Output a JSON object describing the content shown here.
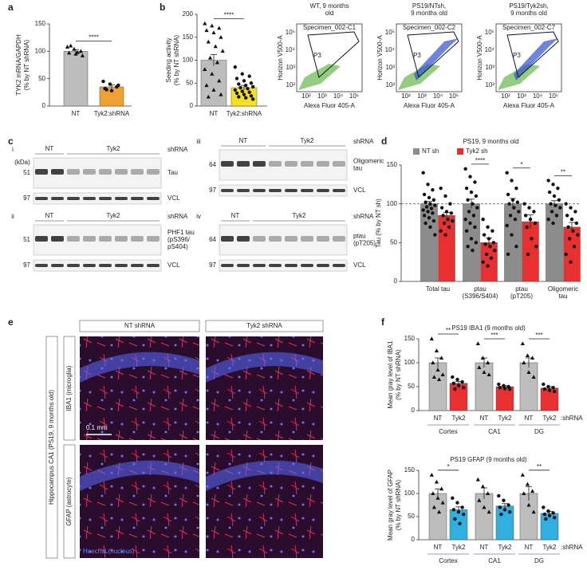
{
  "panels": [
    "a",
    "b",
    "c",
    "d",
    "e",
    "f"
  ],
  "chart_data": [
    {
      "type": "bar",
      "ylabel": [
        "TYK2 mRNA/GAPDH",
        "(% by NT shRNA)"
      ],
      "categories": [
        "NT",
        "Tyk2:shRNA"
      ],
      "ylim": [
        0,
        150
      ],
      "yticks": [
        0,
        50,
        100,
        150
      ],
      "series": [
        {
          "colors": [
            "#bdbdbd",
            "#f0a030"
          ],
          "markers": [
            "triangle",
            "circle"
          ],
          "values": [
            100,
            35
          ],
          "errors": [
            3,
            4
          ],
          "points": [
            [
              108,
              104,
              100,
              97,
              95,
              92,
              110,
              98
            ],
            [
              45,
              40,
              35,
              32,
              28,
              38,
              30
            ]
          ]
        }
      ],
      "significance": "****"
    },
    {
      "type": "bar",
      "ylabel": [
        "Seeding activity",
        "(% by NT shRNA)"
      ],
      "categories": [
        "NT",
        "Tyk2:shRNA"
      ],
      "ylim": [
        0,
        200
      ],
      "yticks": [
        0,
        50,
        100,
        150,
        200
      ],
      "series": [
        {
          "colors": [
            "#bdbdbd",
            "#f5e020"
          ],
          "markers": [
            "triangle",
            "circle"
          ],
          "values": [
            100,
            40
          ],
          "errors": [
            12,
            5
          ],
          "points": [
            [
              180,
              175,
              170,
              165,
              160,
              150,
              140,
              130,
              120,
              105,
              95,
              80,
              70,
              55,
              45,
              35,
              25,
              20
            ],
            [
              85,
              70,
              65,
              60,
              55,
              50,
              48,
              45,
              42,
              40,
              38,
              35,
              32,
              30,
              28,
              25,
              22,
              20,
              18,
              15
            ]
          ]
        }
      ],
      "significance": "****"
    },
    {
      "type": "bar",
      "title": "PS19, 9 months old",
      "ylabel": [
        "Tau (% by NT sh)"
      ],
      "categories": [
        [
          "Total tau"
        ],
        [
          "ptau",
          "(S396/S404)"
        ],
        [
          "ptau",
          "(pT205)"
        ],
        [
          "Oligomeric",
          "tau"
        ]
      ],
      "ylim": [
        0,
        150
      ],
      "yticks": [
        0,
        50,
        100,
        150
      ],
      "hline": 100,
      "legend": "top",
      "series": [
        {
          "name": "NT sh",
          "color": "#8c8c8c",
          "marker": "circle",
          "values": [
            100,
            100,
            100,
            100
          ],
          "errors": [
            3,
            6,
            7,
            4
          ],
          "points": [
            [
              140,
              125,
              118,
              112,
              108,
              105,
              102,
              100,
              98,
              96,
              94,
              92,
              90,
              88,
              85,
              82,
              78,
              75,
              70,
              60
            ],
            [
              145,
              135,
              128,
              120,
              115,
              110,
              105,
              100,
              95,
              90,
              85,
              80,
              75,
              70,
              65,
              55,
              50,
              45,
              40
            ],
            [
              140,
              130,
              120,
              112,
              105,
              102,
              100,
              95,
              90,
              85,
              80,
              72,
              60,
              45,
              35
            ],
            [
              130,
              125,
              120,
              115,
              110,
              105,
              100,
              98,
              95,
              90,
              85,
              80,
              75
            ]
          ]
        },
        {
          "name": "Tyk2 sh",
          "color": "#e83030",
          "marker": "circle",
          "values": [
            85,
            50,
            77,
            70
          ],
          "errors": [
            4,
            6,
            9,
            6
          ],
          "points": [
            [
              120,
              110,
              100,
              95,
              90,
              88,
              85,
              80,
              78,
              75,
              70,
              65,
              60
            ],
            [
              80,
              70,
              65,
              60,
              55,
              50,
              48,
              45,
              40,
              35,
              30,
              25,
              20
            ],
            [
              100,
              95,
              90,
              85,
              80,
              75,
              70,
              55,
              45,
              35
            ],
            [
              100,
              95,
              90,
              85,
              80,
              75,
              70,
              65,
              60,
              55,
              45,
              35,
              25
            ]
          ]
        }
      ],
      "significance": [
        null,
        "****",
        "*",
        "**"
      ]
    },
    {
      "type": "bar",
      "title": "PS19 IBA1 (9 months old)",
      "ylabel": [
        "Mean gray level of IBA1",
        "(% by NT shRNA)"
      ],
      "categories": [
        "Cortex",
        "CA1",
        "DG"
      ],
      "bar_labels": [
        "NT",
        "Tyk2"
      ],
      "suffix_label": ":shRNA",
      "ylim": [
        0,
        150
      ],
      "yticks": [
        0,
        50,
        100,
        150
      ],
      "series": [
        {
          "color": "#bdbdbd",
          "marker": "triangle",
          "values": [
            100,
            100,
            100
          ],
          "errors": [
            10,
            10,
            10
          ],
          "points": [
            [
              150,
              125,
              110,
              100,
              85,
              75,
              70,
              65
            ],
            [
              140,
              110,
              100,
              90,
              80,
              75
            ],
            [
              140,
              115,
              110,
              100,
              80,
              70
            ]
          ]
        },
        {
          "color": "#e83030",
          "marker": "circle",
          "values": [
            57,
            50,
            47
          ],
          "errors": [
            4,
            2,
            3
          ],
          "points": [
            [
              70,
              65,
              60,
              57,
              52,
              48,
              45
            ],
            [
              55,
              52,
              50,
              48,
              46,
              45
            ],
            [
              55,
              50,
              48,
              45,
              42,
              40
            ]
          ]
        }
      ],
      "significance": [
        "**",
        "***",
        "***"
      ]
    },
    {
      "type": "bar",
      "title": "PS19 GFAP (9 months old)",
      "ylabel": [
        "Mean gray level of GFAP",
        "(% by NT shRNA)"
      ],
      "categories": [
        "Cortex",
        "CA1",
        "DG"
      ],
      "bar_labels": [
        "NT",
        "Tyk2"
      ],
      "suffix_label": ":shRNA",
      "ylim": [
        0,
        150
      ],
      "yticks": [
        0,
        50,
        100,
        150
      ],
      "series": [
        {
          "color": "#bdbdbd",
          "marker": "triangle",
          "values": [
            100,
            100,
            100
          ],
          "errors": [
            10,
            12,
            15
          ],
          "points": [
            [
              140,
              125,
              110,
              100,
              90,
              80,
              70,
              60
            ],
            [
              130,
              115,
              100,
              85,
              70,
              60
            ],
            [
              140,
              120,
              105,
              100,
              75,
              60
            ]
          ]
        },
        {
          "color": "#30b0e0",
          "marker": "circle",
          "values": [
            65,
            73,
            57
          ],
          "errors": [
            6,
            5,
            4
          ],
          "points": [
            [
              90,
              80,
              70,
              65,
              60,
              55,
              45,
              35
            ],
            [
              95,
              85,
              75,
              70,
              65,
              60,
              55
            ],
            [
              70,
              62,
              58,
              55,
              52,
              48,
              45
            ]
          ]
        }
      ],
      "significance": [
        "*",
        null,
        "**"
      ]
    }
  ],
  "flow": {
    "plots": [
      {
        "title": [
          "WT, 9 months",
          "old"
        ],
        "specimen": "Specimen_002-C1"
      },
      {
        "title": [
          "PS19/NTsh,",
          "9 months old"
        ],
        "specimen": "Specimen_002-C2"
      },
      {
        "title": [
          "PS19/Tyk2sh,",
          "9 months old"
        ],
        "specimen": "Specimen_002-C7"
      }
    ],
    "gate": "P3",
    "ylabel": "Horizon V500-A",
    "xlabel": "Alexa Fluor 405-A",
    "xticks": [
      "10²",
      "10³",
      "10⁴",
      "10⁵"
    ],
    "yticks": [
      "10²",
      "10³",
      "10⁴",
      "10⁵"
    ]
  },
  "blots": {
    "unit": "(kDa)",
    "lane_label": "shRNA",
    "groups": [
      "NT",
      "Tyk2"
    ],
    "items": [
      {
        "id": "i",
        "rows": [
          {
            "kda": 51,
            "label": [
              "Tau"
            ]
          },
          {
            "kda": 97,
            "label": [
              "VCL"
            ]
          }
        ]
      },
      {
        "id": "ii",
        "rows": [
          {
            "kda": 51,
            "label": [
              "PHF1 tau",
              "(pS396/",
              "pS404)"
            ]
          },
          {
            "kda": 97,
            "label": [
              "VCL"
            ]
          }
        ]
      },
      {
        "id": "iii",
        "rows": [
          {
            "kda": 64,
            "label": [
              "Oligomeric",
              "tau"
            ]
          },
          {
            "kda": 97,
            "label": [
              "VCL"
            ]
          }
        ]
      },
      {
        "id": "iv",
        "rows": [
          {
            "kda": 64,
            "label": [
              "ptau",
              "(pT205)"
            ]
          },
          {
            "kda": 97,
            "label": [
              "VCL"
            ]
          }
        ]
      }
    ]
  },
  "images": {
    "columns": [
      "NT shRNA",
      "Tyk2 shRNA"
    ],
    "rows": [
      "IBA1 (microglia)",
      "GFAP (astrocyte)"
    ],
    "region": "Hippocampus CA1 (PS19, 9 months old)",
    "scale": "0.1 mm",
    "stain": "Hoechst (nucleus)"
  }
}
